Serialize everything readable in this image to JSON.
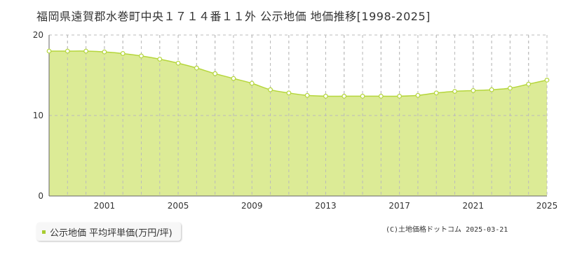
{
  "header": {
    "title": "福岡県遠賀郡水巻町中央１７１４番１１外 公示地価 地価推移[1998-2025]"
  },
  "legend": {
    "label": "公示地価 平均坪単価(万円/坪)"
  },
  "footer": {
    "copyright": "(C)土地価格ドットコム 2025-03-21"
  },
  "colors": {
    "fill": "#dceb96",
    "line": "#b5d63c",
    "legend_marker": "#a8cc30",
    "grid": "#bbbbbb"
  },
  "chart_data": {
    "type": "area",
    "title": "福岡県遠賀郡水巻町中央１７１４番１１外 公示地価 地価推移[1998-2025]",
    "xlabel": "",
    "ylabel": "",
    "xlim": [
      1998,
      2025
    ],
    "ylim": [
      0,
      20
    ],
    "yticks": [
      0,
      10,
      20
    ],
    "xticks": [
      2001,
      2005,
      2009,
      2013,
      2017,
      2021,
      2025
    ],
    "grid": true,
    "legend_position": "bottom-left",
    "x": [
      1998,
      1999,
      2000,
      2001,
      2002,
      2003,
      2004,
      2005,
      2006,
      2007,
      2008,
      2009,
      2010,
      2011,
      2012,
      2013,
      2014,
      2015,
      2016,
      2017,
      2018,
      2019,
      2020,
      2021,
      2022,
      2023,
      2024,
      2025
    ],
    "series": [
      {
        "name": "公示地価 平均坪単価(万円/坪)",
        "values": [
          18.0,
          18.0,
          18.0,
          17.9,
          17.7,
          17.4,
          17.0,
          16.5,
          15.9,
          15.2,
          14.6,
          14.0,
          13.2,
          12.8,
          12.5,
          12.4,
          12.4,
          12.4,
          12.4,
          12.4,
          12.5,
          12.8,
          13.0,
          13.1,
          13.2,
          13.4,
          13.9,
          14.4
        ]
      }
    ]
  }
}
